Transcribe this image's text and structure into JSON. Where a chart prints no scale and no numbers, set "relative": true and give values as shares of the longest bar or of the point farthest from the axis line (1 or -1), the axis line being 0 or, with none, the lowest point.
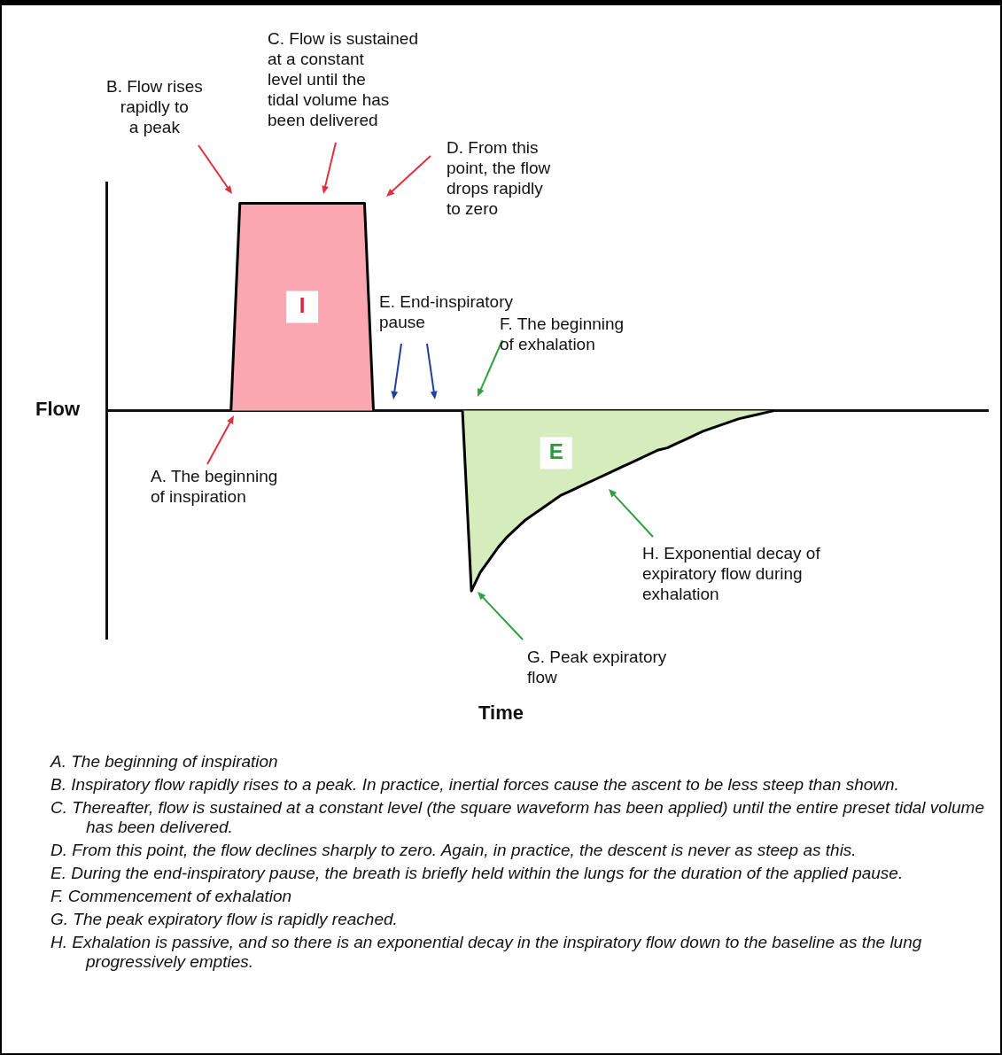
{
  "chart_data": {
    "type": "area",
    "relative": true,
    "ylabel": "Flow",
    "categories": [
      null,
      null,
      null,
      null,
      null,
      null,
      null,
      null,
      null,
      null,
      null,
      null,
      null,
      null,
      null,
      null,
      null,
      null,
      null,
      null,
      null,
      null,
      null,
      null,
      null,
      null,
      null,
      null,
      null,
      null,
      null,
      null,
      null,
      null,
      null,
      null,
      null,
      null,
      null,
      null,
      null,
      null,
      null,
      null,
      null,
      null,
      null,
      null,
      null,
      null,
      null,
      null,
      null,
      null,
      null,
      null,
      null,
      null,
      null,
      null,
      null,
      null,
      null,
      null,
      null,
      null,
      null,
      null,
      null,
      null,
      null,
      null,
      null,
      null,
      null,
      null,
      null,
      null,
      null,
      null,
      null,
      null,
      null,
      null,
      null,
      null,
      null,
      null,
      null,
      null,
      null,
      null,
      null,
      null,
      null,
      null,
      null,
      null,
      null,
      null
    ],
    "series": [
      {
        "name": "I",
        "color": "#f9a7b0",
        "values": [
          null,
          null,
          null,
          null,
          null,
          null,
          null,
          null,
          null,
          null,
          null,
          null,
          null,
          null,
          0,
          1,
          1,
          1,
          1,
          1,
          1,
          1,
          1,
          1,
          1,
          1,
          1,
          1,
          1,
          1,
          0,
          null,
          null,
          null,
          null,
          null,
          null,
          null,
          null,
          null,
          null,
          null,
          null,
          null,
          null,
          null,
          null,
          null,
          null,
          null,
          null,
          null,
          null,
          null,
          null,
          null,
          null,
          null,
          null,
          null,
          null,
          null,
          null,
          null,
          null,
          null,
          null,
          null,
          null,
          null,
          null,
          null,
          null,
          null,
          null,
          null,
          null,
          null,
          null,
          null,
          null,
          null,
          null,
          null,
          null,
          null,
          null,
          null,
          null,
          null,
          null,
          null,
          null,
          null,
          null,
          null,
          null,
          null,
          null,
          null
        ]
      },
      {
        "name": "E",
        "color": "#d6ecbd",
        "values": [
          null,
          null,
          null,
          null,
          null,
          null,
          null,
          null,
          null,
          null,
          null,
          null,
          null,
          null,
          null,
          null,
          null,
          null,
          null,
          null,
          null,
          null,
          null,
          null,
          null,
          null,
          null,
          null,
          null,
          null,
          null,
          null,
          null,
          null,
          null,
          null,
          null,
          null,
          null,
          null,
          0,
          -0.87,
          -0.78,
          -0.72,
          -0.66,
          -0.61,
          -0.57,
          -0.53,
          -0.5,
          -0.47,
          -0.44,
          -0.41,
          -0.39,
          -0.37,
          -0.35,
          -0.33,
          -0.31,
          -0.29,
          -0.27,
          -0.25,
          -0.23,
          -0.21,
          -0.19,
          -0.18,
          -0.16,
          -0.14,
          -0.12,
          -0.1,
          -0.085,
          -0.07,
          -0.055,
          -0.04,
          -0.03,
          -0.02,
          -0.01,
          0,
          null,
          null,
          null,
          null,
          null,
          null,
          null,
          null,
          null,
          null,
          null,
          null,
          null,
          null,
          null,
          null,
          null,
          null,
          null,
          null,
          null,
          null,
          null,
          null
        ]
      }
    ],
    "annotations": [
      "A. The beginning\nof inspiration",
      "B. Flow rises\nrapidly to\na peak",
      "C. Flow is sustained\nat a constant\nlevel until the\ntidal volume has\nbeen delivered",
      "D. From this\npoint, the flow\ndrops rapidly\nto zero",
      "E. End-inspiratory\npause",
      "F. The beginning\nof exhalation",
      "G. Peak expiratory\nflow",
      "H. Exponential decay of\nexpiratory flow during\nexhalation",
      "Time",
      "A. The beginning of inspiration",
      "B. Inspiratory flow rapidly rises to a peak. In practice, inertial forces cause the ascent to be less steep than shown.",
      "C. Thereafter, flow is sustained at a constant level (the square waveform has been applied) until the entire preset tidal volume has been delivered.",
      "D. From this point, the flow declines sharply to zero. Again, in practice, the descent is never as steep as this.",
      "E. During the end-inspiratory pause, the breath is briefly held within the lungs for the duration of the applied pause.",
      "F. Commencement of exhalation",
      "G. The peak expiratory flow is rapidly reached.",
      "H. Exhalation is passive, and so there is an exponential decay in the inspiratory flow down to the baseline as the lung progressively empties."
    ]
  }
}
